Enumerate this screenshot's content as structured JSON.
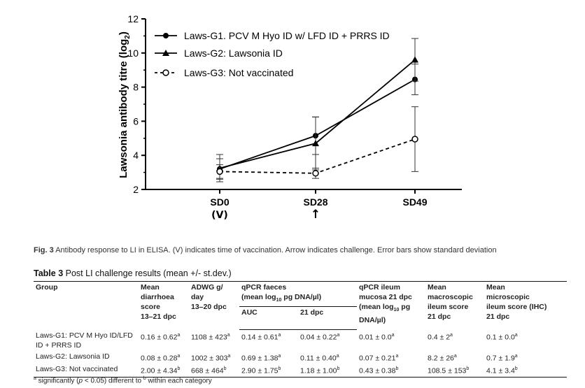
{
  "chart_data": {
    "type": "line",
    "ylabel": "Lawsonia antibody titre (log",
    "ylabel_sub": "2",
    "ylabel_end": ")",
    "ylim": [
      2,
      12
    ],
    "yticks": [
      2,
      4,
      6,
      8,
      10,
      12
    ],
    "categories": [
      "SD0",
      "SD28",
      "SD49"
    ],
    "category_sublabels": [
      "(V)",
      "↑",
      ""
    ],
    "series": [
      {
        "name": "Laws-G1. PCV M Hyo ID w/ LFD ID + PRRS ID",
        "marker": "circle",
        "dash": false,
        "values": [
          3.2,
          5.15,
          8.45
        ],
        "err": [
          0.6,
          1.1,
          0.9
        ]
      },
      {
        "name": "Laws-G2: Lawsonia ID",
        "marker": "triangle",
        "dash": false,
        "values": [
          3.25,
          4.7,
          9.6
        ],
        "err": [
          0.8,
          1.55,
          1.25
        ]
      },
      {
        "name": "Laws-G3: Not vaccinated",
        "marker": "open-circle",
        "dash": true,
        "values": [
          3.05,
          2.95,
          4.95
        ],
        "err": [
          0.4,
          0.3,
          1.9
        ]
      }
    ]
  },
  "caption": {
    "label": "Fig. 3",
    "text": "Antibody response to LI in ELISA. (V) indicates time of vaccination. Arrow indicates challenge. Error bars show standard deviation"
  },
  "table": {
    "label": "Table 3",
    "title": "Post LI challenge results (mean +/- st.dev.)",
    "headers": {
      "group": "Group",
      "diarrhoea": [
        "Mean",
        "diarrhoea",
        "score",
        "13–21 dpc"
      ],
      "adwg": [
        "ADWG g/",
        "day",
        "13–20 dpc"
      ],
      "qpcr_faeces": "qPCR faeces",
      "qpcr_faeces_unit_a": "(mean log",
      "qpcr_faeces_unit_sub": "10",
      "qpcr_faeces_unit_b": " pg DNA/µl)",
      "auc": "AUC",
      "dpc21": "21 dpc",
      "ileum_a": "qPCR ileum",
      "ileum_b": "mucosa 21 dpc",
      "ileum_c": "(mean log",
      "ileum_c_sub": "10",
      "ileum_c_end": " pg",
      "ileum_d": "DNA/µl)",
      "macro": [
        "Mean",
        "macroscopic",
        "ileum score",
        "21 dpc"
      ],
      "micro": [
        "Mean",
        "microscopic",
        "ileum score (IHC)",
        "21 dpc"
      ]
    },
    "rows": [
      {
        "group": "Laws-G1: PCV M Hyo ID/LFD ID + PRRS ID",
        "diarrhoea": "0.16 ± 0.62",
        "diarrhoea_sup": "a",
        "adwg": "1108 ± 423",
        "adwg_sup": "a",
        "auc": "0.14 ± 0.61",
        "auc_sup": "a",
        "dpc21": "0.04 ± 0.22",
        "dpc21_sup": "a",
        "ileum": "0.01 ± 0.0",
        "ileum_sup": "a",
        "macro": "0.4 ± 2",
        "macro_sup": "a",
        "micro": "0.1 ± 0.0",
        "micro_sup": "a"
      },
      {
        "group": "Laws-G2: Lawsonia ID",
        "diarrhoea": "0.08 ± 0.28",
        "diarrhoea_sup": "a",
        "adwg": "1002 ± 303",
        "adwg_sup": "a",
        "auc": "0.69 ± 1.38",
        "auc_sup": "a",
        "dpc21": "0.11 ± 0.40",
        "dpc21_sup": "a",
        "ileum": "0.07 ± 0.21",
        "ileum_sup": "a",
        "macro": "8.2 ± 26",
        "macro_sup": "a",
        "micro": "0.7 ± 1.9",
        "micro_sup": "a"
      },
      {
        "group": "Laws-G3: Not vaccinated",
        "diarrhoea": "2.00 ± 4.34",
        "diarrhoea_sup": "b",
        "adwg": "668 ± 464",
        "adwg_sup": "b",
        "auc": "2.90 ± 1.75",
        "auc_sup": "b",
        "dpc21": "1.18 ± 1.00",
        "dpc21_sup": "b",
        "ileum": "0.43 ± 0.38",
        "ileum_sup": "b",
        "macro": "108.5 ± 153",
        "macro_sup": "b",
        "micro": "4.1 ± 3.4",
        "micro_sup": "b"
      }
    ],
    "footnote": {
      "sup_a": "a",
      "text_a": " significantly (",
      "p": "p",
      "text_b": " < 0.05) different to ",
      "sup_b": "b",
      "text_c": " within each category"
    }
  }
}
